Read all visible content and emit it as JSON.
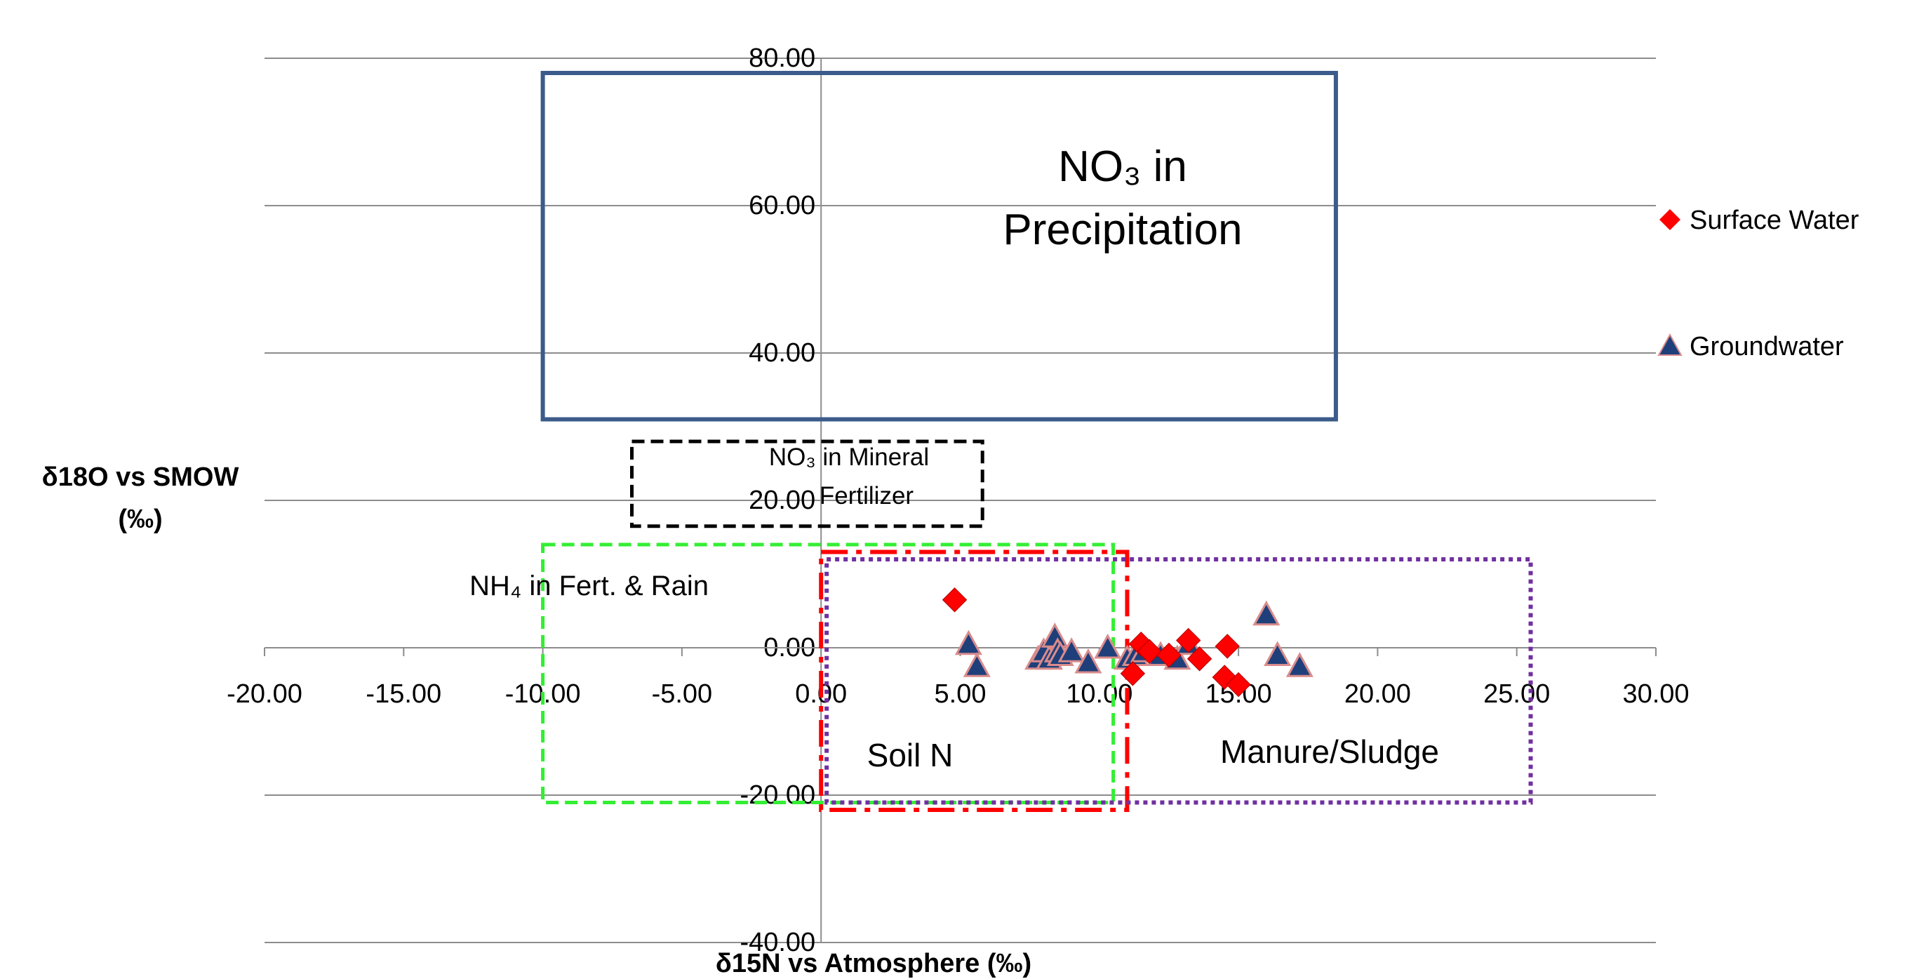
{
  "chart_data": {
    "type": "scatter",
    "xlabel": "δ15N vs Atmosphere (‰)",
    "ylabel_line1": "δ18O vs SMOW",
    "ylabel_line2": "(‰)",
    "xlim": [
      -20,
      30
    ],
    "ylim": [
      -40,
      80
    ],
    "x_ticks": [
      "-20.00",
      "-15.00",
      "-10.00",
      "-5.00",
      "0.00",
      "5.00",
      "10.00",
      "15.00",
      "20.00",
      "25.00",
      "30.00"
    ],
    "y_ticks": [
      "-40.00",
      "-20.00",
      "0.00",
      "20.00",
      "40.00",
      "60.00",
      "80.00"
    ],
    "x_tick_values": [
      -20,
      -15,
      -10,
      -5,
      0,
      5,
      10,
      15,
      20,
      25,
      30
    ],
    "y_tick_values": [
      -40,
      -20,
      0,
      20,
      40,
      60,
      80
    ],
    "grid": "horizontal",
    "legend_position": "right",
    "series": [
      {
        "name": "Surface Water",
        "marker": "diamond",
        "color": "#ff0000",
        "points": [
          [
            4.8,
            6.5
          ],
          [
            11.2,
            -3.5
          ],
          [
            11.5,
            0.5
          ],
          [
            11.8,
            -0.5
          ],
          [
            12.5,
            -1.0
          ],
          [
            13.2,
            1.0
          ],
          [
            13.6,
            -1.5
          ],
          [
            14.5,
            -4.0
          ],
          [
            14.6,
            0.2
          ],
          [
            15.0,
            -5.0
          ]
        ]
      },
      {
        "name": "Groundwater",
        "marker": "triangle",
        "color": "#1f3f7a",
        "edge_color": "#d98c8c",
        "points": [
          [
            5.3,
            0.5
          ],
          [
            5.6,
            -2.5
          ],
          [
            7.8,
            -1.5
          ],
          [
            8.0,
            -0.5
          ],
          [
            8.2,
            -1.5
          ],
          [
            8.4,
            1.5
          ],
          [
            8.5,
            -0.5
          ],
          [
            8.6,
            -1.0
          ],
          [
            9.0,
            -0.5
          ],
          [
            9.6,
            -2.0
          ],
          [
            10.3,
            0.0
          ],
          [
            11.0,
            -1.5
          ],
          [
            11.3,
            -1.0
          ],
          [
            11.6,
            -0.5
          ],
          [
            12.2,
            -1.0
          ],
          [
            12.8,
            -1.5
          ],
          [
            13.2,
            0.5
          ],
          [
            16.0,
            4.5
          ],
          [
            16.4,
            -1.0
          ],
          [
            17.2,
            -2.5
          ]
        ]
      }
    ],
    "regions": [
      {
        "label_main": "NO₃ in",
        "label_sub": "Precipitation",
        "x": [
          -10,
          18.5
        ],
        "y": [
          31,
          78
        ],
        "style": "solid",
        "color": "#3b5b8a"
      },
      {
        "label_main": "NO₃ in Mineral",
        "label_sub": "Fertilizer",
        "x": [
          -6.8,
          5.8
        ],
        "y": [
          16.5,
          28
        ],
        "style": "dashed",
        "color": "#000000"
      },
      {
        "label_main": "NH₄ in Fert. & Rain",
        "label_sub": "",
        "x": [
          -10,
          10.5
        ],
        "y": [
          -21,
          14
        ],
        "style": "dashed",
        "color": "#33ee33"
      },
      {
        "label_main": "Soil N",
        "label_sub": "",
        "x": [
          0,
          11
        ],
        "y": [
          -22,
          13
        ],
        "style": "dashdot",
        "color": "#ff0000"
      },
      {
        "label_main": "Manure/Sludge",
        "label_sub": "",
        "x": [
          0.2,
          25.5
        ],
        "y": [
          -21,
          12
        ],
        "style": "dotted",
        "color": "#7030a0"
      }
    ]
  }
}
